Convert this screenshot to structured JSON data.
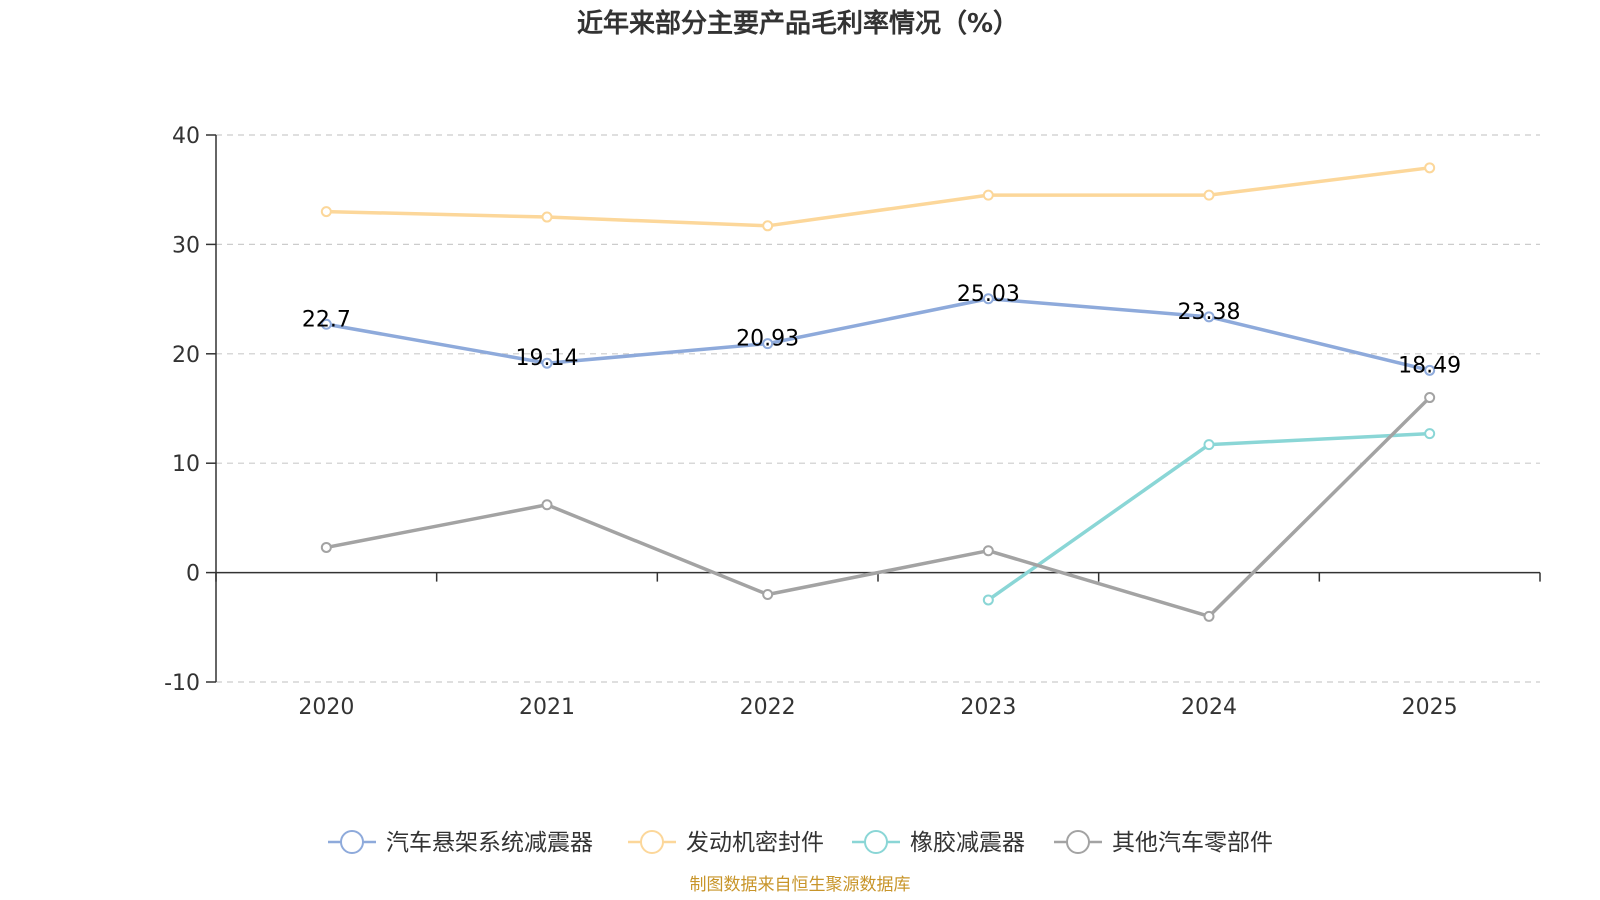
{
  "chart_data": {
    "type": "line",
    "title": "近年来部分主要产品毛利率情况（%）",
    "xlabel": "",
    "ylabel": "",
    "categories": [
      "2020",
      "2021",
      "2022",
      "2023",
      "2024",
      "2025"
    ],
    "ylim": [
      -10,
      40
    ],
    "yticks": [
      40,
      30,
      20,
      10,
      0,
      -10
    ],
    "grid": true,
    "legend_position": "bottom",
    "series": [
      {
        "name": "汽车悬架系统减震器",
        "color": "#8eaadb",
        "values": [
          22.7,
          19.14,
          20.93,
          25.03,
          23.38,
          18.49
        ],
        "labels": [
          "22.7",
          "19.14",
          "20.93",
          "25.03",
          "23.38",
          "18.49"
        ]
      },
      {
        "name": "发动机密封件",
        "color": "#fcd79a",
        "values": [
          33.0,
          32.5,
          31.7,
          34.5,
          34.5,
          37.0
        ],
        "labels": null
      },
      {
        "name": "橡胶减震器",
        "color": "#8ad6d6",
        "values": [
          null,
          null,
          null,
          -2.5,
          11.7,
          12.7
        ],
        "labels": null
      },
      {
        "name": "其他汽车零部件",
        "color": "#a3a3a3",
        "values": [
          2.3,
          6.2,
          -2.0,
          2.0,
          -4.0,
          16.0
        ],
        "labels": null
      }
    ]
  },
  "source": "制图数据来自恒生聚源数据库"
}
